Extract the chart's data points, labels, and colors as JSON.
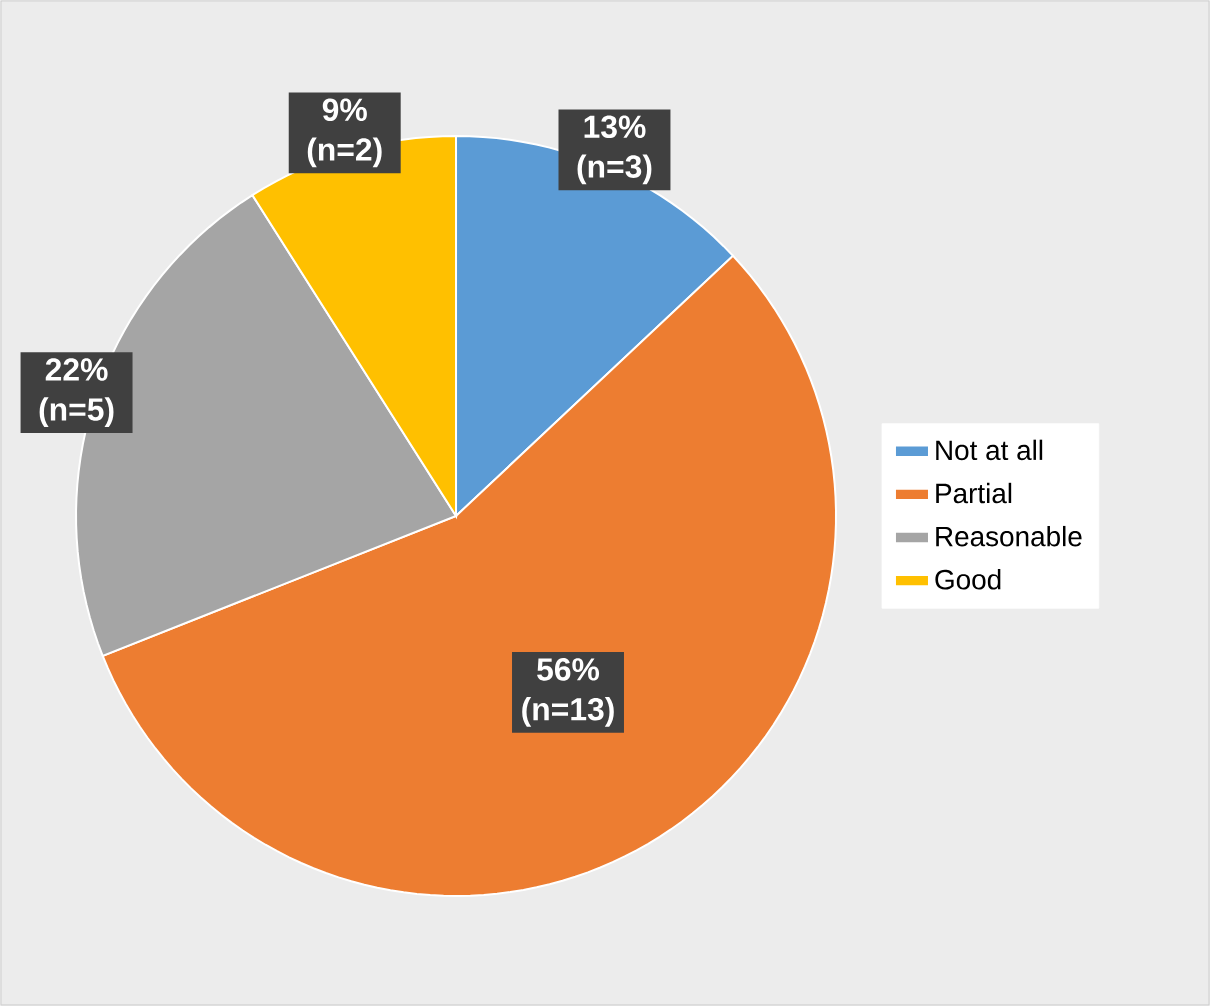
{
  "chart_data": {
    "type": "pie",
    "categories": [
      "Not at all",
      "Partial",
      "Reasonable",
      "Good"
    ],
    "values": [
      13,
      56,
      22,
      9
    ],
    "colors": [
      "#5b9bd5",
      "#ed7d31",
      "#a5a5a5",
      "#ffc000"
    ],
    "value_labels": [
      "13% (n=3)",
      "56% (n=13)",
      "22% (n=5)",
      "9% (n=2)"
    ],
    "legend": "right"
  }
}
